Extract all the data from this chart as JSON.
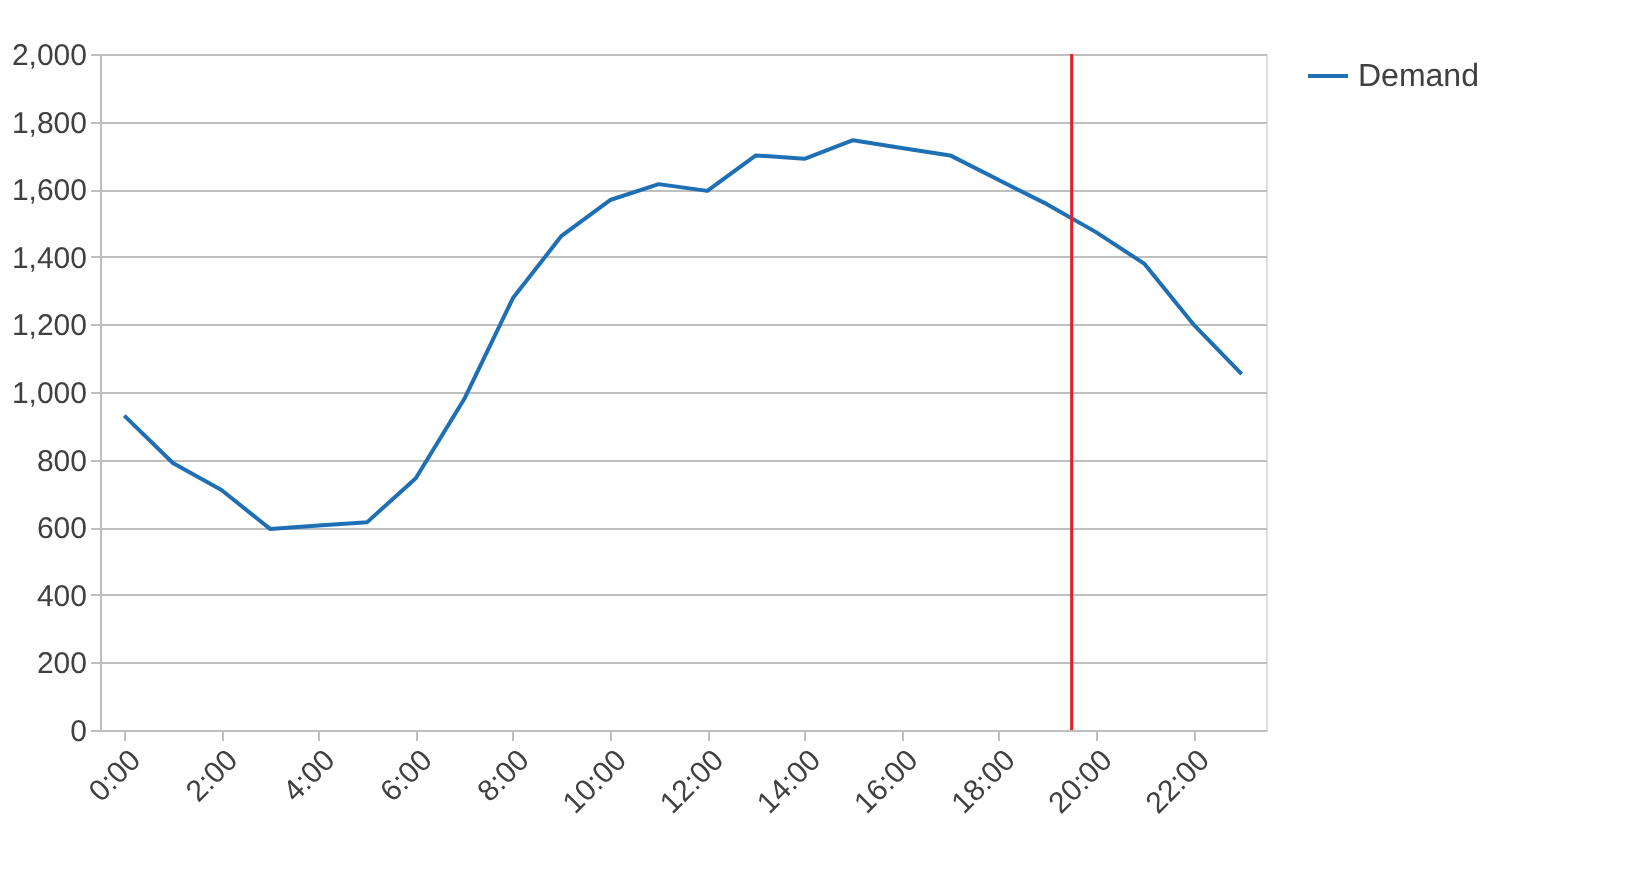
{
  "chart_data": {
    "type": "line",
    "x": [
      0,
      1,
      2,
      3,
      4,
      5,
      6,
      7,
      8,
      9,
      10,
      11,
      12,
      13,
      14,
      15,
      16,
      17,
      18,
      19,
      20,
      21,
      22,
      23
    ],
    "series": [
      {
        "name": "Demand",
        "color": "#1f6fb5",
        "values": [
          930,
          790,
          710,
          595,
          605,
          615,
          745,
          980,
          1278,
          1462,
          1568,
          1615,
          1595,
          1700,
          1690,
          1745,
          1722,
          1700,
          1627,
          1555,
          1473,
          1379,
          1201,
          1053
        ]
      }
    ],
    "xlim": [
      -0.5,
      23.5
    ],
    "xticks": [
      {
        "value": 0,
        "label": "0:00"
      },
      {
        "value": 2,
        "label": "2:00"
      },
      {
        "value": 4,
        "label": "4:00"
      },
      {
        "value": 6,
        "label": "6:00"
      },
      {
        "value": 8,
        "label": "8:00"
      },
      {
        "value": 10,
        "label": "10:00"
      },
      {
        "value": 12,
        "label": "12:00"
      },
      {
        "value": 14,
        "label": "14:00"
      },
      {
        "value": 16,
        "label": "16:00"
      },
      {
        "value": 18,
        "label": "18:00"
      },
      {
        "value": 20,
        "label": "20:00"
      },
      {
        "value": 22,
        "label": "22:00"
      }
    ],
    "ylim": [
      0,
      2000
    ],
    "yticks": [
      0,
      200,
      400,
      600,
      800,
      {
        "value": 1000,
        "label": "1,000"
      },
      {
        "value": 1200,
        "label": "1,200"
      },
      {
        "value": 1400,
        "label": "1,400"
      },
      {
        "value": 1600,
        "label": "1,600"
      },
      {
        "value": 1800,
        "label": "1,800"
      },
      {
        "value": 2000,
        "label": "2,000"
      }
    ],
    "ref_lines": [
      {
        "axis": "x",
        "value": 19.5,
        "color": "#e0202a"
      }
    ],
    "grid": "y",
    "legend": "right",
    "marker": "none",
    "line_style": "solid"
  }
}
